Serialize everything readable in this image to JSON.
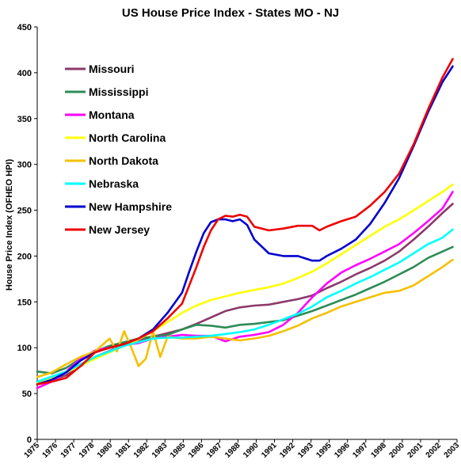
{
  "chart_data": {
    "type": "line",
    "title": "US House Price Index - States MO - NJ",
    "xlabel": "",
    "ylabel": "House Price Index (OFHEO HPI)",
    "ylim": [
      0,
      450
    ],
    "xlim": [
      1975,
      2004
    ],
    "yticks": [
      0,
      50,
      100,
      150,
      200,
      250,
      300,
      350,
      400,
      450
    ],
    "xtick_labels": [
      "1975",
      "1976",
      "1977",
      "1978",
      "1980",
      "1981",
      "1982",
      "1983",
      "1985",
      "1986",
      "1987",
      "1988",
      "1990",
      "1991",
      "1992",
      "1993",
      "1995",
      "1996",
      "1997",
      "1998",
      "2000",
      "2001",
      "2002",
      "2003"
    ],
    "grid": false,
    "legend_position": "top-left",
    "series": [
      {
        "name": "Missouri",
        "color": "#8B3A6B",
        "x": [
          1975,
          1977,
          1979,
          1981,
          1982,
          1983,
          1984,
          1985,
          1986,
          1987,
          1988,
          1989,
          1990,
          1991,
          1992,
          1993,
          1994,
          1995,
          1996,
          1997,
          1998,
          1999,
          2000,
          2001,
          2002,
          2003,
          2003.7
        ],
        "y": [
          60,
          70,
          90,
          103,
          108,
          112,
          116,
          120,
          126,
          133,
          140,
          144,
          146,
          147,
          150,
          153,
          157,
          165,
          172,
          180,
          187,
          195,
          205,
          218,
          232,
          247,
          257
        ]
      },
      {
        "name": "Mississippi",
        "color": "#2E8B57",
        "x": [
          1975,
          1976,
          1977,
          1978,
          1979,
          1980,
          1981,
          1982,
          1983,
          1984,
          1985,
          1986,
          1987,
          1988,
          1989,
          1990,
          1991,
          1992,
          1993,
          1994,
          1995,
          1996,
          1997,
          1998,
          1999,
          2000,
          2001,
          2002,
          2003,
          2003.7
        ],
        "y": [
          74,
          72,
          78,
          88,
          96,
          102,
          106,
          110,
          112,
          114,
          120,
          125,
          124,
          122,
          125,
          126,
          128,
          130,
          135,
          140,
          146,
          152,
          158,
          165,
          172,
          180,
          188,
          198,
          205,
          210
        ]
      },
      {
        "name": "Montana",
        "color": "#FF00FF",
        "x": [
          1975,
          1976,
          1977,
          1978,
          1979,
          1980,
          1981,
          1982,
          1983,
          1984,
          1985,
          1986,
          1987,
          1988,
          1989,
          1990,
          1991,
          1992,
          1993,
          1994,
          1995,
          1996,
          1997,
          1998,
          1999,
          2000,
          2001,
          2002,
          2003,
          2003.7
        ],
        "y": [
          56,
          63,
          74,
          88,
          97,
          100,
          103,
          105,
          110,
          112,
          114,
          113,
          113,
          107,
          112,
          114,
          117,
          125,
          138,
          155,
          170,
          182,
          190,
          197,
          205,
          213,
          225,
          238,
          252,
          270
        ]
      },
      {
        "name": "North Carolina",
        "color": "#FFFF00",
        "x": [
          1975,
          1977,
          1979,
          1981,
          1982,
          1983,
          1984,
          1985,
          1986,
          1987,
          1988,
          1989,
          1990,
          1991,
          1992,
          1993,
          1994,
          1995,
          1996,
          1997,
          1998,
          1999,
          2000,
          2001,
          2002,
          2003,
          2003.7
        ],
        "y": [
          62,
          73,
          88,
          102,
          109,
          118,
          128,
          138,
          146,
          152,
          156,
          160,
          163,
          166,
          170,
          176,
          183,
          192,
          202,
          212,
          222,
          232,
          240,
          250,
          260,
          270,
          278
        ]
      },
      {
        "name": "North Dakota",
        "color": "#F5C000",
        "x": [
          1975,
          1976,
          1977,
          1978,
          1979,
          1980,
          1980.5,
          1981,
          1981.5,
          1982,
          1982.5,
          1983,
          1983.5,
          1984,
          1985,
          1986,
          1987,
          1988,
          1989,
          1990,
          1991,
          1992,
          1993,
          1994,
          1995,
          1996,
          1997,
          1998,
          1999,
          2000,
          2001,
          2002,
          2003,
          2003.7
        ],
        "y": [
          68,
          73,
          82,
          90,
          96,
          110,
          96,
          118,
          100,
          80,
          88,
          118,
          90,
          112,
          110,
          110,
          112,
          110,
          108,
          110,
          113,
          118,
          124,
          132,
          138,
          145,
          150,
          155,
          160,
          162,
          168,
          178,
          188,
          196
        ]
      },
      {
        "name": "Nebraska",
        "color": "#00FFFF",
        "x": [
          1975,
          1977,
          1979,
          1981,
          1982,
          1983,
          1984,
          1985,
          1986,
          1987,
          1988,
          1989,
          1990,
          1991,
          1992,
          1993,
          1994,
          1995,
          1996,
          1997,
          1998,
          1999,
          2000,
          2001,
          2002,
          2003,
          2003.7
        ],
        "y": [
          63,
          74,
          90,
          102,
          106,
          110,
          111,
          111,
          112,
          113,
          115,
          117,
          120,
          125,
          131,
          137,
          145,
          155,
          162,
          170,
          177,
          185,
          193,
          203,
          213,
          220,
          229
        ]
      },
      {
        "name": "New Hampshire",
        "color": "#0000CD",
        "x": [
          1975,
          1976,
          1977,
          1978,
          1979,
          1980,
          1981,
          1982,
          1983,
          1984,
          1985,
          1985.5,
          1986,
          1986.5,
          1987,
          1987.5,
          1988,
          1988.5,
          1989,
          1989.5,
          1990,
          1991,
          1992,
          1993,
          1994,
          1994.5,
          1995,
          1996,
          1997,
          1998,
          1999,
          2000,
          2001,
          2002,
          2003,
          2003.7
        ],
        "y": [
          60,
          65,
          73,
          86,
          95,
          100,
          104,
          110,
          120,
          138,
          160,
          183,
          205,
          225,
          237,
          240,
          240,
          238,
          240,
          234,
          218,
          203,
          200,
          200,
          195,
          195,
          200,
          208,
          218,
          235,
          258,
          285,
          320,
          357,
          390,
          407
        ]
      },
      {
        "name": "New Jersey",
        "color": "#EE0000",
        "x": [
          1975,
          1976,
          1977,
          1978,
          1979,
          1980,
          1981,
          1982,
          1983,
          1984,
          1985,
          1985.5,
          1986,
          1986.5,
          1987,
          1987.5,
          1988,
          1988.5,
          1989,
          1989.5,
          1990,
          1991,
          1992,
          1993,
          1994,
          1994.5,
          1995,
          1996,
          1997,
          1998,
          1999,
          2000,
          2001,
          2002,
          2003,
          2003.7
        ],
        "y": [
          60,
          63,
          67,
          80,
          95,
          100,
          104,
          110,
          118,
          132,
          148,
          168,
          188,
          210,
          228,
          240,
          244,
          243,
          245,
          243,
          232,
          228,
          230,
          233,
          233,
          228,
          232,
          238,
          243,
          255,
          270,
          290,
          322,
          360,
          395,
          415
        ]
      }
    ]
  }
}
